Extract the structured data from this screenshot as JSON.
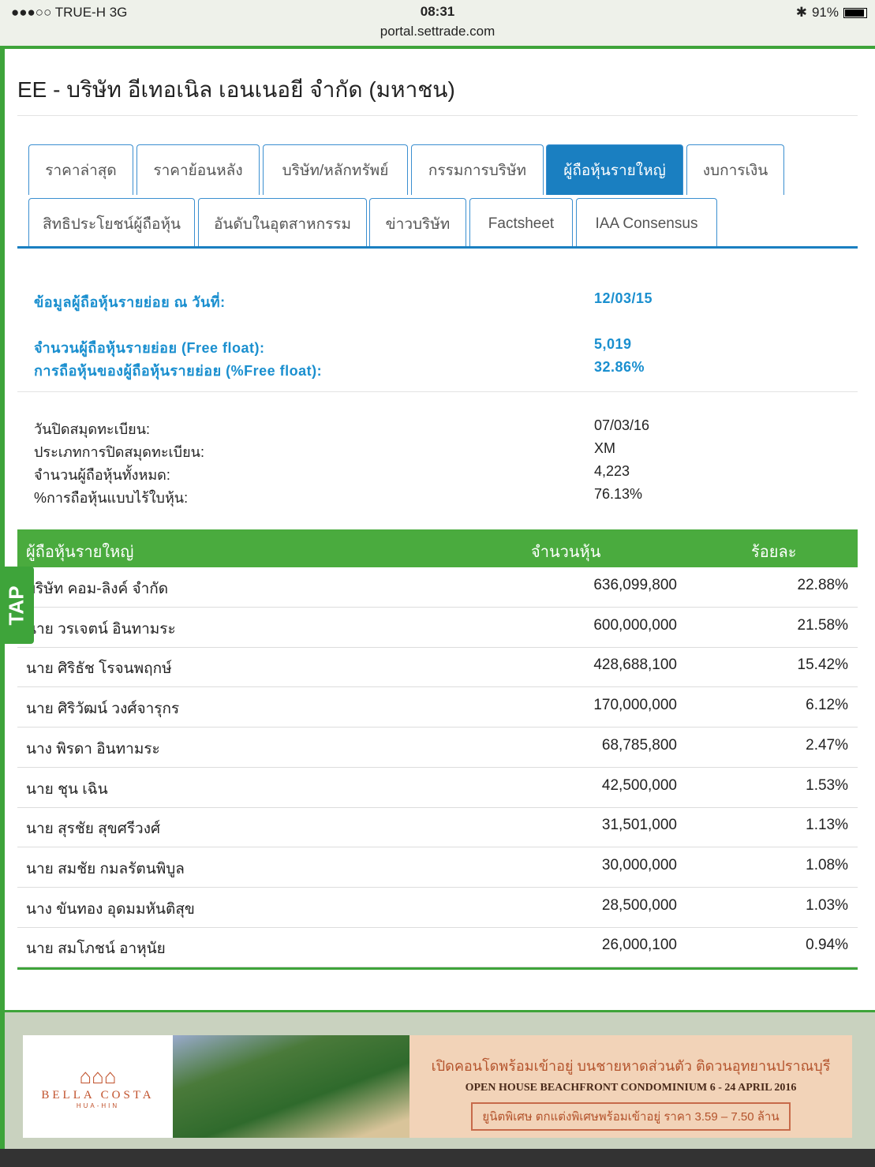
{
  "status": {
    "carrier": "●●●○○ TRUE-H   3G",
    "time": "08:31",
    "url": "portal.settrade.com",
    "battery": "91%",
    "battery_level": 0.91
  },
  "title": "EE - บริษัท อีเทอเนิล เอนเนอยี จำกัด (มหาชน)",
  "tabs_row1": [
    "ราคาล่าสุด",
    "ราคาย้อนหลัง",
    "บริษัท/หลักทรัพย์",
    "กรรมการบริษัท",
    "ผู้ถือหุ้นรายใหญ่",
    "งบการเงิน"
  ],
  "tabs_row2": [
    "สิทธิประโยชน์ผู้ถือหุ้น",
    "อันดับในอุตสาหกรรม",
    "ข่าวบริษัท",
    "Factsheet",
    "IAA Consensus"
  ],
  "freefloat": [
    {
      "label": "ข้อมูลผู้ถือหุ้นรายย่อย ณ วันที่:",
      "value": "12/03/15"
    },
    {
      "label": "จำนวนผู้ถือหุ้นรายย่อย (Free float):",
      "value": "5,019"
    },
    {
      "label": "การถือหุ้นของผู้ถือหุ้นรายย่อย (%Free float):",
      "value": "32.86%"
    }
  ],
  "info": [
    {
      "label": "วันปิดสมุดทะเบียน:",
      "value": "07/03/16"
    },
    {
      "label": "ประเภทการปิดสมุดทะเบียน:",
      "value": "XM"
    },
    {
      "label": "จำนวนผู้ถือหุ้นทั้งหมด:",
      "value": "4,223"
    },
    {
      "label": "%การถือหุ้นแบบไร้ใบหุ้น:",
      "value": "76.13%"
    }
  ],
  "table": {
    "headers": [
      "ผู้ถือหุ้นรายใหญ่",
      "จำนวนหุ้น",
      "ร้อยละ"
    ],
    "rows": [
      [
        "บริษัท คอม-ลิงค์ จำกัด",
        "636,099,800",
        "22.88%"
      ],
      [
        "นาย วรเจตน์ อินทามระ",
        "600,000,000",
        "21.58%"
      ],
      [
        "นาย ศิริธัช โรจนพฤกษ์",
        "428,688,100",
        "15.42%"
      ],
      [
        "นาย ศิริวัฒน์ วงศ์จารุกร",
        "170,000,000",
        "6.12%"
      ],
      [
        "นาง พิรดา อินทามระ",
        "68,785,800",
        "2.47%"
      ],
      [
        "นาย ชุน เฉิน",
        "42,500,000",
        "1.53%"
      ],
      [
        "นาย สุรชัย สุขศรีวงศ์",
        "31,501,000",
        "1.13%"
      ],
      [
        "นาย สมชัย กมลรัตนพิบูล",
        "30,000,000",
        "1.08%"
      ],
      [
        "นาง ขันทอง อุดมมหันติสุข",
        "28,500,000",
        "1.03%"
      ],
      [
        "นาย สมโภชน์ อาหุนัย",
        "26,000,100",
        "0.94%"
      ]
    ]
  },
  "tap": "TAP",
  "ad": {
    "brand": "BELLA COSTA",
    "sub": "HUA-HIN",
    "line1": "เปิดคอนโดพร้อมเข้าอยู่ บนชายหาดส่วนตัว ติดวนอุทยานปราณบุรี",
    "line2": "OPEN HOUSE  BEACHFRONT  CONDOMINIUM 6 - 24 APRIL 2016",
    "line3": "ยูนิตพิเศษ ตกแต่งพิเศษพร้อมเข้าอยู่ ราคา 3.59 – 7.50 ล้าน"
  }
}
